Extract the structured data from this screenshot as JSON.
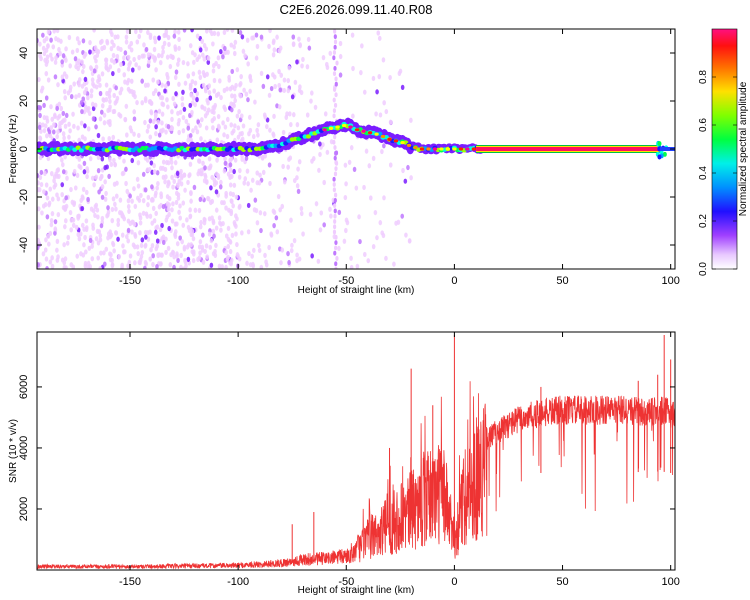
{
  "chart_data": [
    {
      "type": "heatmap",
      "title": "C2E6.2026.099.11.40.R08",
      "xlabel": "Height of straight line (km)",
      "ylabel": "Frequency (Hz)",
      "xlim": [
        -193,
        102
      ],
      "ylim": [
        -50,
        50
      ],
      "xticks": [
        -150,
        -100,
        -50,
        0,
        50,
        100
      ],
      "yticks": [
        -40,
        -20,
        0,
        20,
        40
      ],
      "colorbar": {
        "label": "Normalized spectral amplitude",
        "range": [
          0,
          1
        ],
        "ticks": [
          "0.0",
          "0.2",
          "0.4",
          "0.6",
          "0.8"
        ],
        "colors": [
          "#f0ccff",
          "#c078ff",
          "#7a1cff",
          "#1a1aff",
          "#00a0ff",
          "#00ffe0",
          "#00ff50",
          "#a0ff00",
          "#ffff00",
          "#ff9000",
          "#ff2000",
          "#ff0090"
        ]
      },
      "ridge": {
        "x": [
          -190,
          -170,
          -150,
          -130,
          -110,
          -100,
          -90,
          -80,
          -70,
          -60,
          -55,
          -50,
          -45,
          -40,
          -35,
          -30,
          -25,
          -22,
          -20,
          -15,
          -10,
          -5,
          0,
          5,
          10,
          50,
          95,
          100
        ],
        "y": [
          0,
          0,
          0,
          0,
          0,
          0,
          0,
          2,
          5,
          8,
          9,
          10,
          8,
          7,
          6,
          4,
          3,
          2,
          1,
          0,
          0,
          0,
          0,
          0,
          0,
          0,
          1,
          0
        ]
      }
    },
    {
      "type": "line",
      "xlabel": "Height of straight line (km)",
      "ylabel": "SNR (10 * v/v)",
      "xlim": [
        -193,
        102
      ],
      "ylim": [
        0,
        7800
      ],
      "xticks": [
        -150,
        -100,
        -50,
        0,
        50,
        100
      ],
      "yticks": [
        2000,
        4000,
        6000
      ],
      "series": [
        {
          "name": "SNR",
          "color": "#ee3333",
          "envelope_x": [
            -193,
            -150,
            -100,
            -80,
            -70,
            -60,
            -50,
            -45,
            -40,
            -35,
            -30,
            -25,
            -20,
            -15,
            -10,
            -5,
            0,
            5,
            10,
            15,
            20,
            25,
            30,
            40,
            50,
            60,
            70,
            80,
            90,
            95,
            100,
            102
          ],
          "envelope_y": [
            150,
            150,
            200,
            300,
            450,
            500,
            600,
            900,
            1300,
            1600,
            1900,
            2200,
            2500,
            2800,
            3200,
            3300,
            1200,
            3200,
            3800,
            4400,
            4700,
            4900,
            5100,
            5300,
            5400,
            5400,
            5400,
            5400,
            5300,
            5400,
            5300,
            5300
          ],
          "spikes": [
            {
              "x": -75,
              "y": 1500
            },
            {
              "x": -65,
              "y": 1900
            },
            {
              "x": -30,
              "y": 4000
            },
            {
              "x": -20,
              "y": 6600
            },
            {
              "x": -10,
              "y": 5400
            },
            {
              "x": 0,
              "y": 7700
            },
            {
              "x": 40,
              "y": 6000
            },
            {
              "x": 85,
              "y": 6200
            },
            {
              "x": 94,
              "y": 6400
            },
            {
              "x": 97,
              "y": 7700
            },
            {
              "x": 100,
              "y": 6900
            }
          ]
        }
      ]
    }
  ]
}
